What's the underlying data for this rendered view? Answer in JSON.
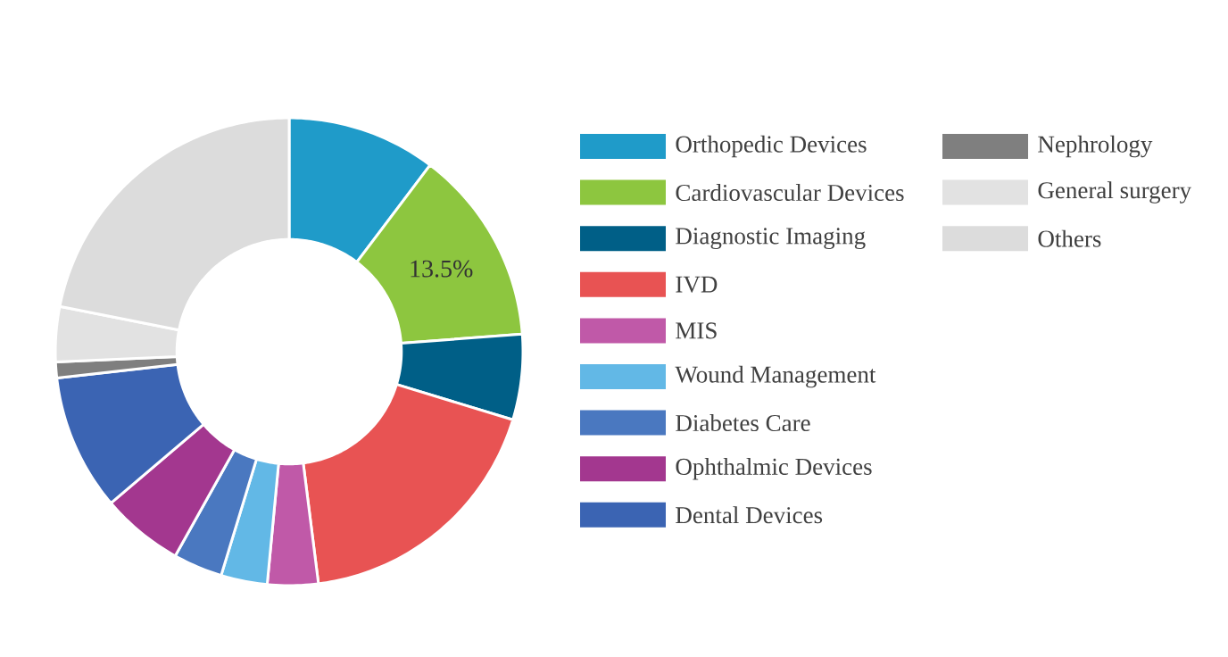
{
  "chart_data": {
    "type": "donut",
    "categories": [
      "Orthopedic Devices",
      "Cardiovascular Devices",
      "Diagnostic Imaging",
      "IVD",
      "MIS",
      "Wound Management",
      "Diabetes Care",
      "Ophthalmic Devices",
      "Dental Devices",
      "Nephrology",
      "General surgery",
      "Others"
    ],
    "values": [
      10.3,
      13.5,
      5.9,
      18.3,
      3.5,
      3.2,
      3.4,
      5.7,
      9.4,
      1.1,
      3.8,
      21.9
    ],
    "colors": [
      "#1f9bc9",
      "#8dc63f",
      "#005f87",
      "#e85353",
      "#c059a8",
      "#62b8e6",
      "#4a78c0",
      "#a3378f",
      "#3b64b3",
      "#7f7f7f",
      "#e2e2e2",
      "#dcdcdc"
    ],
    "value_labels": [
      null,
      "13.5%",
      null,
      null,
      null,
      null,
      null,
      null,
      null,
      null,
      null,
      null
    ],
    "legend": "right"
  }
}
